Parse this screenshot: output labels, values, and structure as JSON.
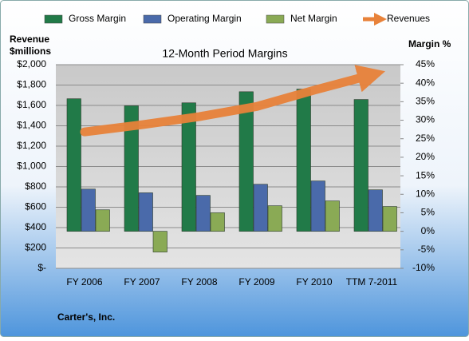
{
  "chart_data": {
    "type": "bar",
    "title": "12-Month Period Margins",
    "ylabel": [
      "Revenue",
      "$millions"
    ],
    "y2label": "Margin %",
    "footer": "Carter's, Inc.",
    "categories": [
      "FY 2006",
      "FY 2007",
      "FY 2008",
      "FY 2009",
      "FY 2010",
      "TTM 7-2011"
    ],
    "series": [
      {
        "name": "Gross Margin",
        "color": "#217a48",
        "axis": "y2",
        "values": [
          35.8,
          33.9,
          34.7,
          37.7,
          38.4,
          35.6
        ]
      },
      {
        "name": "Operating Margin",
        "color": "#4a6aaa",
        "axis": "y2",
        "values": [
          11.4,
          10.4,
          9.7,
          12.7,
          13.6,
          11.2
        ]
      },
      {
        "name": "Net Margin",
        "color": "#8aaa55",
        "axis": "y2",
        "values": [
          5.8,
          -5.6,
          5.0,
          6.9,
          8.2,
          6.7
        ]
      },
      {
        "name": "Revenues",
        "color": "#e8823a",
        "type": "line",
        "values": [
          1340,
          1410,
          1490,
          1590,
          1750,
          1900
        ]
      }
    ],
    "ylim": [
      0,
      2000
    ],
    "yticks": [
      {
        "value": 0,
        "label": "$-"
      },
      {
        "value": 200,
        "label": "$200"
      },
      {
        "value": 400,
        "label": "$400"
      },
      {
        "value": 600,
        "label": "$600"
      },
      {
        "value": 800,
        "label": "$800"
      },
      {
        "value": 1000,
        "label": "$1,000"
      },
      {
        "value": 1200,
        "label": "$1,200"
      },
      {
        "value": 1400,
        "label": "$1,400"
      },
      {
        "value": 1600,
        "label": "$1,600"
      },
      {
        "value": 1800,
        "label": "$1,800"
      },
      {
        "value": 2000,
        "label": "$2,000"
      }
    ],
    "y2lim": [
      -10,
      45
    ],
    "y2ticks": [
      {
        "value": -10,
        "label": "-10%"
      },
      {
        "value": -5,
        "label": "-5%"
      },
      {
        "value": 0,
        "label": "0%"
      },
      {
        "value": 5,
        "label": "5%"
      },
      {
        "value": 10,
        "label": "10%"
      },
      {
        "value": 15,
        "label": "15%"
      },
      {
        "value": 20,
        "label": "20%"
      },
      {
        "value": 25,
        "label": "25%"
      },
      {
        "value": 30,
        "label": "30%"
      },
      {
        "value": 35,
        "label": "35%"
      },
      {
        "value": 40,
        "label": "40%"
      },
      {
        "value": 45,
        "label": "45%"
      }
    ],
    "grid": true
  }
}
